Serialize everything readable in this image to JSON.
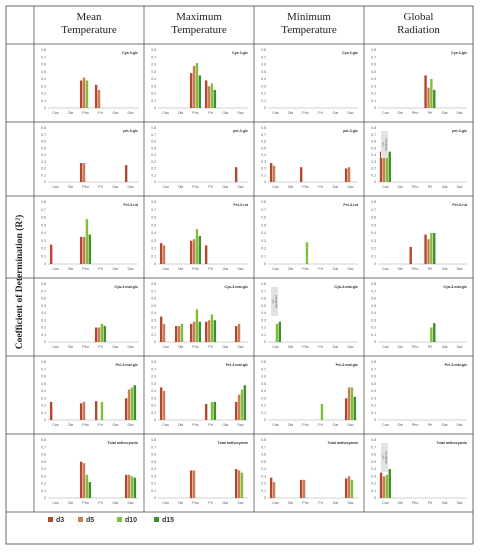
{
  "figure": {
    "ylabel": "Coefficient of Determination (R²)",
    "columns": [
      "Mean\nTemperature",
      "Maximum\nTemperature",
      "Minimum\nTemperature",
      "Global\nRadiation"
    ]
  },
  "legend": [
    {
      "label": "d3",
      "color": "#b5472e"
    },
    {
      "label": "d5",
      "color": "#c97f56"
    },
    {
      "label": "d10",
      "color": "#7fbf3a"
    },
    {
      "label": "d15",
      "color": "#3f8f2a"
    }
  ],
  "chart_data": {
    "type": "bar",
    "categories": [
      "Can",
      "Ole",
      "Pho",
      "Pri",
      "Gar",
      "Sav"
    ],
    "ylim": [
      0,
      0.8
    ],
    "yticks": [
      "0.8",
      "0.7",
      "0.6",
      "0.5",
      "0.4",
      "0.3",
      "0.2",
      "0.1",
      "0"
    ],
    "series_names": [
      "d3",
      "d5",
      "d10",
      "d15"
    ],
    "rows": [
      {
        "title": "Cya 3-glc",
        "panels": [
          {
            "values": [
              [
                0,
                0,
                0,
                0
              ],
              [
                0,
                0,
                0,
                0
              ],
              [
                0.38,
                0.42,
                0.38,
                0
              ],
              [
                0.32,
                0.25,
                0,
                0
              ],
              [
                0,
                0,
                0,
                0
              ],
              [
                0,
                0,
                0,
                0
              ]
            ],
            "note": ""
          },
          {
            "values": [
              [
                0,
                0,
                0,
                0
              ],
              [
                0,
                0,
                0,
                0
              ],
              [
                0.48,
                0.58,
                0.62,
                0.45
              ],
              [
                0.38,
                0.3,
                0.34,
                0.25
              ],
              [
                0,
                0,
                0,
                0
              ],
              [
                0,
                0,
                0,
                0
              ]
            ],
            "note": ""
          },
          {
            "values": [
              [
                0,
                0,
                0,
                0
              ],
              [
                0,
                0,
                0,
                0
              ],
              [
                0,
                0,
                0,
                0
              ],
              [
                0,
                0,
                0,
                0
              ],
              [
                0,
                0,
                0,
                0
              ],
              [
                0,
                0,
                0,
                0
              ]
            ],
            "note": ""
          },
          {
            "values": [
              [
                0,
                0,
                0,
                0
              ],
              [
                0,
                0,
                0,
                0
              ],
              [
                0,
                0,
                0,
                0
              ],
              [
                0.45,
                0.28,
                0.4,
                0.25
              ],
              [
                0,
                0,
                0,
                0
              ],
              [
                0,
                0,
                0,
                0
              ]
            ],
            "note": ""
          }
        ]
      },
      {
        "title": "pel-3-glc",
        "panels": [
          {
            "values": [
              [
                0,
                0,
                0,
                0
              ],
              [
                0,
                0,
                0,
                0
              ],
              [
                0.28,
                0.28,
                0,
                0
              ],
              [
                0,
                0,
                0,
                0
              ],
              [
                0,
                0,
                0,
                0
              ],
              [
                0.25,
                0,
                0,
                0
              ]
            ],
            "note": ""
          },
          {
            "values": [
              [
                0,
                0,
                0,
                0
              ],
              [
                0,
                0,
                0,
                0
              ],
              [
                0,
                0,
                0,
                0
              ],
              [
                0,
                0,
                0,
                0
              ],
              [
                0,
                0,
                0,
                0
              ],
              [
                0.22,
                0,
                0,
                0
              ]
            ],
            "note": ""
          },
          {
            "values": [
              [
                0.28,
                0.24,
                0,
                0
              ],
              [
                0,
                0,
                0,
                0
              ],
              [
                0.22,
                0,
                0,
                0
              ],
              [
                0,
                0,
                0,
                0
              ],
              [
                0,
                0,
                0,
                0
              ],
              [
                0.2,
                0.22,
                0,
                0
              ]
            ],
            "note": ""
          },
          {
            "values": [
              [
                0.45,
                0.42,
                0.43,
                0.45
              ],
              [
                0,
                0,
                0,
                0
              ],
              [
                0,
                0,
                0,
                0
              ],
              [
                0,
                0,
                0,
                0
              ],
              [
                0,
                0,
                0,
                0
              ],
              [
                0,
                0,
                0,
                0
              ]
            ],
            "note": "not\nsignificant"
          }
        ]
      },
      {
        "title": "Pel-3-rut",
        "panels": [
          {
            "values": [
              [
                0.25,
                0,
                0,
                0
              ],
              [
                0,
                0,
                0,
                0
              ],
              [
                0.35,
                0.35,
                0.58,
                0.38
              ],
              [
                0,
                0,
                0,
                0
              ],
              [
                0,
                0,
                0,
                0
              ],
              [
                0,
                0,
                0,
                0
              ]
            ],
            "note": ""
          },
          {
            "values": [
              [
                0.27,
                0.24,
                0,
                0
              ],
              [
                0,
                0,
                0,
                0
              ],
              [
                0.3,
                0.32,
                0.45,
                0.36
              ],
              [
                0.24,
                0,
                0,
                0
              ],
              [
                0,
                0,
                0,
                0
              ],
              [
                0,
                0,
                0,
                0
              ]
            ],
            "note": ""
          },
          {
            "values": [
              [
                0,
                0,
                0,
                0
              ],
              [
                0,
                0,
                0,
                0
              ],
              [
                0,
                0,
                0.28,
                0
              ],
              [
                0,
                0,
                0,
                0
              ],
              [
                0,
                0,
                0,
                0
              ],
              [
                0,
                0,
                0,
                0
              ]
            ],
            "note": ""
          },
          {
            "values": [
              [
                0,
                0,
                0,
                0
              ],
              [
                0,
                0,
                0,
                0
              ],
              [
                0.22,
                0,
                0,
                0
              ],
              [
                0.38,
                0.32,
                0.4,
                0.4
              ],
              [
                0,
                0,
                0,
                0
              ],
              [
                0,
                0,
                0,
                0
              ]
            ],
            "note": ""
          }
        ]
      },
      {
        "title": "Cya-3-mal-glc",
        "panels": [
          {
            "values": [
              [
                0,
                0,
                0,
                0
              ],
              [
                0,
                0,
                0,
                0
              ],
              [
                0,
                0,
                0,
                0
              ],
              [
                0.2,
                0.2,
                0.25,
                0.22
              ],
              [
                0,
                0,
                0,
                0
              ],
              [
                0,
                0,
                0,
                0
              ]
            ],
            "note": ""
          },
          {
            "values": [
              [
                0.35,
                0.25,
                0,
                0
              ],
              [
                0.22,
                0.22,
                0.25,
                0
              ],
              [
                0.25,
                0.28,
                0.45,
                0.28
              ],
              [
                0.28,
                0.3,
                0.38,
                0.3
              ],
              [
                0,
                0,
                0,
                0
              ],
              [
                0.22,
                0.25,
                0,
                0
              ]
            ],
            "note": ""
          },
          {
            "values": [
              [
                0,
                0,
                0.25,
                0.28
              ],
              [
                0,
                0,
                0,
                0
              ],
              [
                0,
                0,
                0,
                0
              ],
              [
                0,
                0,
                0,
                0
              ],
              [
                0,
                0,
                0,
                0
              ],
              [
                0,
                0,
                0,
                0
              ]
            ],
            "note": "not\nsignificant"
          },
          {
            "values": [
              [
                0,
                0,
                0,
                0
              ],
              [
                0,
                0,
                0,
                0
              ],
              [
                0,
                0,
                0,
                0
              ],
              [
                0,
                0,
                0.2,
                0.26
              ],
              [
                0,
                0,
                0,
                0
              ],
              [
                0,
                0,
                0,
                0
              ]
            ],
            "note": ""
          }
        ]
      },
      {
        "title": "Pel-3-mal-glc",
        "panels": [
          {
            "values": [
              [
                0.25,
                0,
                0,
                0
              ],
              [
                0,
                0,
                0,
                0
              ],
              [
                0.23,
                0.25,
                0,
                0
              ],
              [
                0.26,
                0,
                0.25,
                0
              ],
              [
                0,
                0,
                0,
                0
              ],
              [
                0.3,
                0.42,
                0.45,
                0.48
              ]
            ],
            "note": ""
          },
          {
            "values": [
              [
                0.45,
                0.4,
                0,
                0
              ],
              [
                0,
                0,
                0,
                0
              ],
              [
                0,
                0,
                0,
                0
              ],
              [
                0.22,
                0,
                0.25,
                0.25
              ],
              [
                0,
                0,
                0,
                0
              ],
              [
                0.25,
                0.35,
                0.42,
                0.48
              ]
            ],
            "note": ""
          },
          {
            "values": [
              [
                0,
                0,
                0,
                0
              ],
              [
                0,
                0,
                0,
                0
              ],
              [
                0,
                0,
                0,
                0
              ],
              [
                0,
                0,
                0.22,
                0
              ],
              [
                0,
                0,
                0,
                0
              ],
              [
                0.3,
                0.45,
                0.45,
                0.32
              ]
            ],
            "note": ""
          },
          {
            "values": [
              [
                0,
                0,
                0,
                0
              ],
              [
                0,
                0,
                0,
                0
              ],
              [
                0,
                0,
                0,
                0
              ],
              [
                0,
                0,
                0,
                0
              ],
              [
                0,
                0,
                0,
                0
              ],
              [
                0,
                0,
                0,
                0
              ]
            ],
            "note": ""
          }
        ]
      },
      {
        "title": "Total anthocyanin",
        "panels": [
          {
            "values": [
              [
                0,
                0,
                0,
                0
              ],
              [
                0,
                0,
                0,
                0
              ],
              [
                0.5,
                0.48,
                0.32,
                0.22
              ],
              [
                0,
                0,
                0,
                0
              ],
              [
                0,
                0,
                0,
                0
              ],
              [
                0.32,
                0.32,
                0.3,
                0.28
              ]
            ],
            "note": ""
          },
          {
            "values": [
              [
                0,
                0,
                0,
                0
              ],
              [
                0,
                0,
                0,
                0
              ],
              [
                0.38,
                0.38,
                0,
                0
              ],
              [
                0,
                0,
                0,
                0
              ],
              [
                0,
                0,
                0,
                0
              ],
              [
                0.4,
                0.38,
                0.35,
                0
              ]
            ],
            "note": ""
          },
          {
            "values": [
              [
                0.28,
                0.22,
                0,
                0
              ],
              [
                0,
                0,
                0,
                0
              ],
              [
                0.25,
                0.25,
                0,
                0
              ],
              [
                0,
                0,
                0,
                0
              ],
              [
                0,
                0,
                0,
                0
              ],
              [
                0.27,
                0.3,
                0.25,
                0
              ]
            ],
            "note": ""
          },
          {
            "values": [
              [
                0.35,
                0.3,
                0.32,
                0.4
              ],
              [
                0,
                0,
                0,
                0
              ],
              [
                0,
                0,
                0,
                0
              ],
              [
                0,
                0,
                0,
                0
              ],
              [
                0,
                0,
                0,
                0
              ],
              [
                0,
                0,
                0,
                0
              ]
            ],
            "note": "not\nsignificant"
          }
        ]
      }
    ]
  }
}
